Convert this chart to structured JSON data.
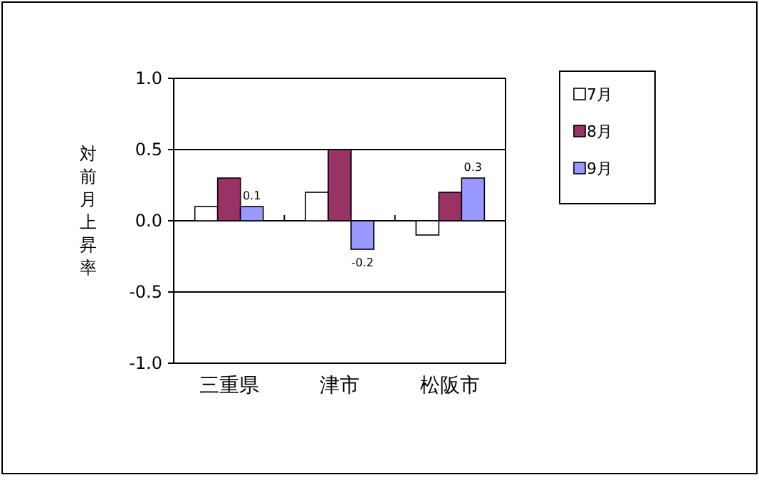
{
  "chart_data": {
    "type": "bar",
    "ylabel": "対前月上昇率",
    "categories": [
      "三重県",
      "津市",
      "松阪市"
    ],
    "series": [
      {
        "name": "7月",
        "color": "#ffffff",
        "values": [
          0.1,
          0.2,
          -0.1
        ]
      },
      {
        "name": "8月",
        "color": "#993366",
        "values": [
          0.3,
          0.5,
          0.2
        ]
      },
      {
        "name": "9月",
        "color": "#9999ff",
        "values": [
          0.1,
          -0.2,
          0.3
        ],
        "value_labels": [
          "0.1",
          "-0.2",
          "0.3"
        ]
      }
    ],
    "ylim": [
      -1,
      1
    ],
    "yticks": [
      {
        "value": 1,
        "label": "1.0"
      },
      {
        "value": 0.5,
        "label": "0.5"
      },
      {
        "value": 0,
        "label": "0.0"
      },
      {
        "value": -0.5,
        "label": "-0.5"
      },
      {
        "value": -1,
        "label": "-1.0"
      }
    ],
    "grid": "y",
    "legend": "right"
  }
}
